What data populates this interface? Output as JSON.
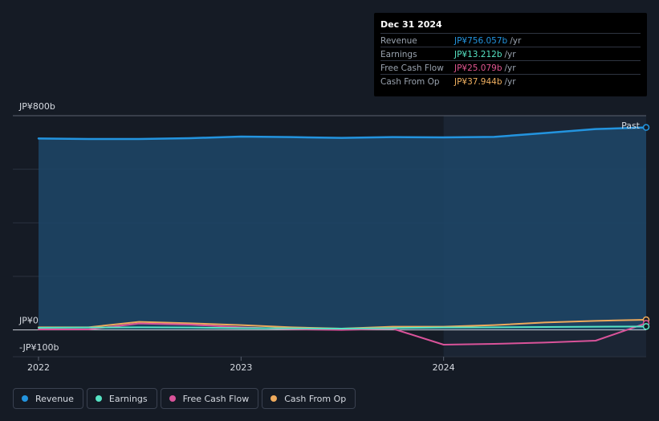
{
  "tooltip": {
    "date": "Dec 31 2024",
    "rows": [
      {
        "label": "Revenue",
        "value": "JP¥756.057b",
        "unit": "/yr",
        "color": "#2394df"
      },
      {
        "label": "Earnings",
        "value": "JP¥13.212b",
        "unit": "/yr",
        "color": "#56e3c3"
      },
      {
        "label": "Free Cash Flow",
        "value": "JP¥25.079b",
        "unit": "/yr",
        "color": "#e0558f"
      },
      {
        "label": "Cash From Op",
        "value": "JP¥37.944b",
        "unit": "/yr",
        "color": "#f0b060"
      }
    ]
  },
  "legend": [
    {
      "label": "Revenue",
      "color": "#2394df"
    },
    {
      "label": "Earnings",
      "color": "#56e3c3"
    },
    {
      "label": "Free Cash Flow",
      "color": "#d9539a"
    },
    {
      "label": "Cash From Op",
      "color": "#eeaa5c"
    }
  ],
  "chart_data": {
    "type": "line",
    "y_tick_labels": [
      "JP¥800b",
      "JP¥0",
      "-JP¥100b"
    ],
    "ylim": [
      -100,
      800
    ],
    "y_unit": "JP¥b",
    "x_tick_labels": [
      "2022",
      "2023",
      "2024"
    ],
    "past_label": "Past",
    "x": [
      "2022-01-01",
      "2022-04-01",
      "2022-07-01",
      "2022-10-01",
      "2023-01-01",
      "2023-04-01",
      "2023-07-01",
      "2023-10-01",
      "2024-01-01",
      "2024-04-01",
      "2024-07-01",
      "2024-10-01",
      "2024-12-31"
    ],
    "series": [
      {
        "name": "Revenue",
        "color": "#2394df",
        "values": [
          715,
          713,
          713,
          716,
          722,
          720,
          717,
          720,
          719,
          721,
          735,
          750,
          756
        ]
      },
      {
        "name": "Earnings",
        "color": "#56e3c3",
        "values": [
          8,
          9,
          10,
          9,
          7,
          6,
          5,
          7,
          9,
          10,
          11,
          12,
          13
        ]
      },
      {
        "name": "Free Cash Flow",
        "color": "#d9539a",
        "values": [
          2,
          2,
          24,
          20,
          10,
          3,
          0,
          5,
          -55,
          -52,
          -47,
          -40,
          25
        ]
      },
      {
        "name": "Cash From Op",
        "color": "#eeaa5c",
        "values": [
          10,
          10,
          30,
          25,
          18,
          10,
          5,
          12,
          12,
          18,
          28,
          34,
          38
        ]
      }
    ],
    "grid": true,
    "legend_position": "bottom-left"
  }
}
